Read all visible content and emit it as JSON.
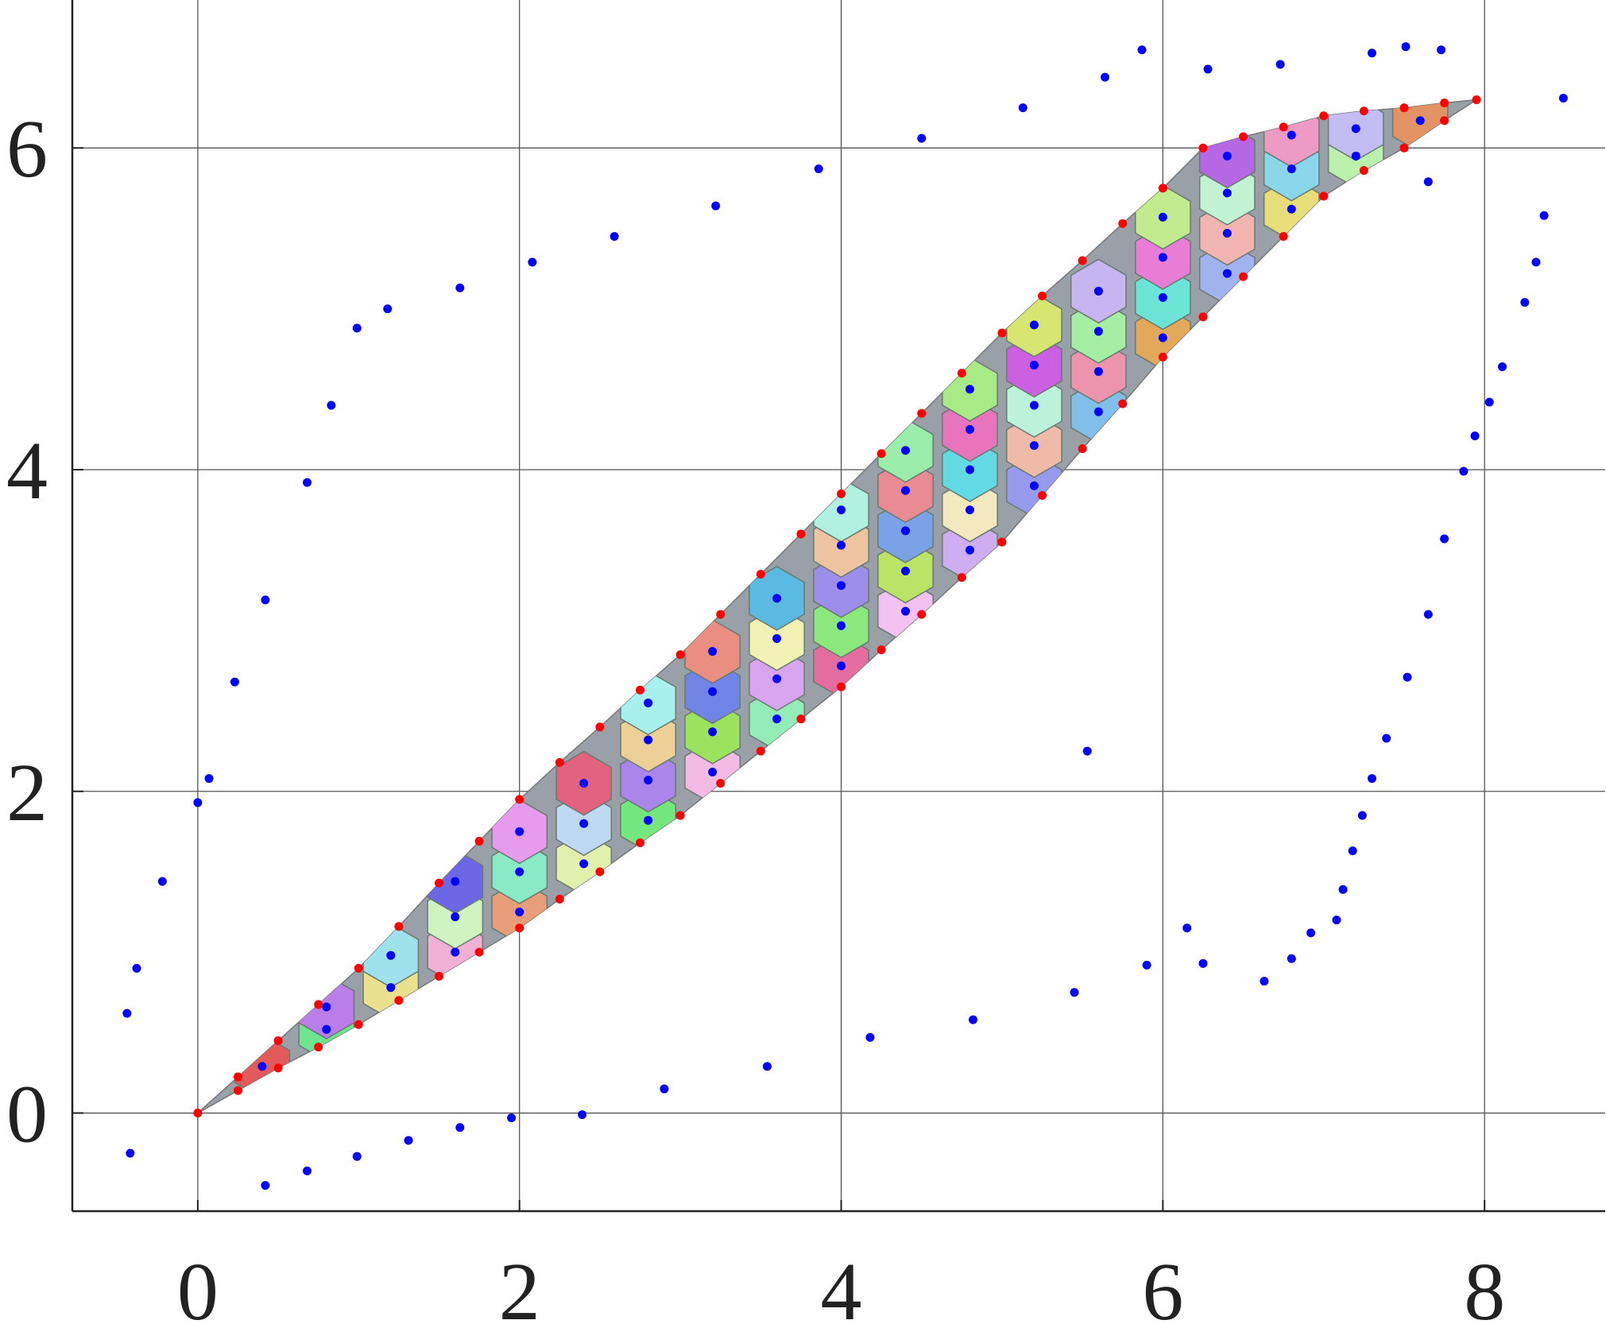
{
  "chart_data": {
    "type": "scatter",
    "xlim": [
      -0.78,
      8.75
    ],
    "ylim": [
      -0.61,
      6.92
    ],
    "xticks": [
      0,
      2,
      4,
      6,
      8
    ],
    "yticks": [
      0,
      2,
      4,
      6
    ],
    "grid": true,
    "series": [
      {
        "color": "#0000ff",
        "x": [
          -0.44,
          -0.38,
          -0.22,
          0,
          0.07,
          0.23,
          0.42,
          0.68,
          0.83,
          0.99,
          1.18,
          1.63,
          2.08,
          2.59,
          3.22,
          3.86,
          4.5,
          5.13,
          5.64,
          5.87,
          6.28,
          6.73,
          7.3,
          7.51,
          7.73,
          8.49,
          8.37,
          8.32,
          8.25,
          8.11,
          8.03,
          7.94,
          7.87,
          7.75,
          7.65,
          7.52,
          7.39,
          7.3,
          7.24,
          7.18,
          7.12,
          7.08,
          6.92,
          6.8,
          6.63,
          0.42,
          0.68,
          0.99,
          1.31,
          1.63,
          1.95,
          2.39,
          2.9,
          3.54,
          4.18,
          4.82,
          5.45,
          5.9,
          6.25,
          6.15,
          -0.42,
          5.53,
          7.65
        ],
        "y": [
          0.62,
          0.9,
          1.44,
          1.93,
          2.08,
          2.68,
          3.19,
          3.92,
          4.4,
          4.88,
          5.0,
          5.13,
          5.29,
          5.45,
          5.64,
          5.87,
          6.06,
          6.25,
          6.44,
          6.61,
          6.49,
          6.52,
          6.59,
          6.63,
          6.61,
          6.31,
          5.58,
          5.29,
          5.04,
          4.64,
          4.42,
          4.21,
          3.99,
          3.57,
          3.1,
          2.71,
          2.33,
          2.08,
          1.85,
          1.63,
          1.39,
          1.2,
          1.12,
          0.96,
          0.82,
          -0.45,
          -0.36,
          -0.27,
          -0.17,
          -0.09,
          -0.03,
          -0.01,
          0.15,
          0.29,
          0.47,
          0.58,
          0.75,
          0.92,
          0.93,
          1.15,
          -0.25,
          2.25,
          5.79
        ]
      },
      {
        "color": "#ff0000",
        "x": [
          0,
          0.25,
          0.5,
          0.75,
          1,
          1.25,
          1.5,
          1.75,
          2,
          2.25,
          2.5,
          2.75,
          3,
          3.25,
          3.5,
          3.75,
          4,
          4.25,
          4.5,
          4.75,
          5,
          5.25,
          5.5,
          5.75,
          6,
          6.25,
          6.5,
          6.75,
          7,
          7.25,
          7.5,
          7.75,
          7.95
        ],
        "y": [
          0,
          0.225,
          0.45,
          0.675,
          0.9,
          1.16,
          1.43,
          1.69,
          1.95,
          2.18,
          2.4,
          2.63,
          2.85,
          3.1,
          3.35,
          3.6,
          3.85,
          4.1,
          4.35,
          4.6,
          4.85,
          5.08,
          5.3,
          5.53,
          5.75,
          6.0,
          6.07,
          6.13,
          6.2,
          6.23,
          6.25,
          6.28,
          6.3
        ]
      },
      {
        "color": "#ff0000",
        "x": [
          0.25,
          0.5,
          0.75,
          1,
          1.25,
          1.5,
          1.75,
          2,
          2.25,
          2.5,
          2.75,
          3,
          3.25,
          3.5,
          3.75,
          4,
          4.25,
          4.5,
          4.75,
          5,
          5.25,
          5.5,
          5.75,
          6,
          6.25,
          6.5,
          6.75,
          7,
          7.25,
          7.5,
          7.75
        ],
        "y": [
          0.14,
          0.28,
          0.41,
          0.55,
          0.7,
          0.85,
          1.0,
          1.15,
          1.33,
          1.5,
          1.68,
          1.85,
          2.05,
          2.25,
          2.45,
          2.65,
          2.88,
          3.1,
          3.33,
          3.55,
          3.84,
          4.13,
          4.41,
          4.7,
          4.95,
          5.2,
          5.45,
          5.7,
          5.86,
          6.0,
          6.17
        ]
      },
      {
        "color": "#0000ff",
        "x": [
          0.4,
          0.8,
          0.8,
          1.2,
          1.2,
          1.6,
          1.6,
          1.6,
          2.0,
          2.0,
          2.0,
          2.4,
          2.4,
          2.4,
          2.8,
          2.8,
          2.8,
          2.8,
          3.2,
          3.2,
          3.2,
          3.2,
          3.6,
          3.6,
          3.6,
          3.6,
          4.0,
          4.0,
          4.0,
          4.0,
          4.0,
          4.4,
          4.4,
          4.4,
          4.4,
          4.4,
          4.8,
          4.8,
          4.8,
          4.8,
          4.8,
          5.2,
          5.2,
          5.2,
          5.2,
          5.2,
          5.6,
          5.6,
          5.6,
          5.6,
          6.0,
          6.0,
          6.0,
          6.0,
          6.4,
          6.4,
          6.4,
          6.4,
          6.8,
          6.8,
          6.8,
          7.2,
          7.2,
          7.6
        ],
        "y": [
          0.29,
          0.52,
          0.66,
          0.78,
          0.98,
          1.0,
          1.22,
          1.44,
          1.25,
          1.5,
          1.75,
          1.55,
          1.8,
          2.05,
          1.82,
          2.07,
          2.32,
          2.55,
          2.12,
          2.37,
          2.62,
          2.87,
          2.45,
          2.7,
          2.95,
          3.2,
          2.78,
          3.03,
          3.28,
          3.53,
          3.75,
          3.12,
          3.37,
          3.62,
          3.87,
          4.12,
          3.5,
          3.75,
          4.0,
          4.25,
          4.5,
          3.9,
          4.15,
          4.4,
          4.65,
          4.9,
          4.36,
          4.61,
          4.86,
          5.11,
          4.82,
          5.07,
          5.32,
          5.57,
          5.22,
          5.47,
          5.72,
          5.95,
          5.62,
          5.87,
          6.08,
          5.95,
          6.12,
          6.17
        ]
      }
    ]
  }
}
